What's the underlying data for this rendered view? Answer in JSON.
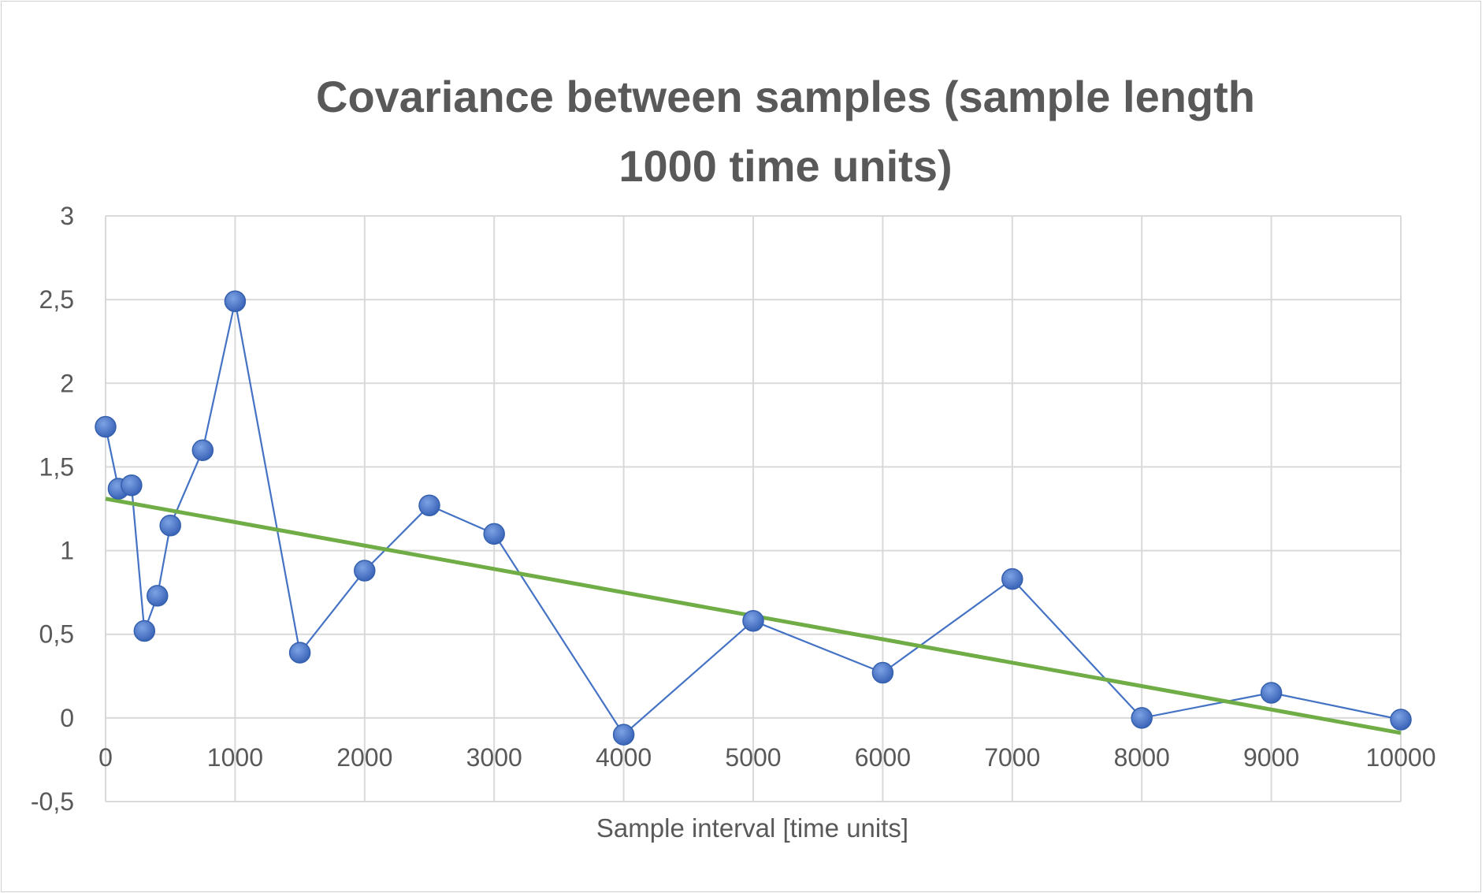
{
  "chart_data": {
    "type": "scatter",
    "title_lines": [
      "Covariance between samples (sample length",
      "1000 time units)"
    ],
    "xlabel": "Sample interval [time units]",
    "ylabel": "",
    "xlim": [
      0,
      10000
    ],
    "ylim": [
      -0.5,
      3
    ],
    "x_ticks": [
      0,
      1000,
      2000,
      3000,
      4000,
      5000,
      6000,
      7000,
      8000,
      9000,
      10000
    ],
    "x_tick_labels": [
      "0",
      "1000",
      "2000",
      "3000",
      "4000",
      "5000",
      "6000",
      "7000",
      "8000",
      "9000",
      "10000"
    ],
    "y_ticks": [
      3,
      2.5,
      2,
      1.5,
      1,
      0.5,
      0,
      -0.5
    ],
    "y_tick_labels": [
      "3",
      "2,5",
      "2",
      "1,5",
      "1",
      "0,5",
      "0",
      "-0,5"
    ],
    "grid": true,
    "legend": "none",
    "series": [
      {
        "style": "line-with-markers",
        "color": "#4472C4",
        "marker_color": "#4472C4",
        "x": [
          0,
          100,
          200,
          300,
          400,
          500,
          750,
          1000,
          1500,
          2000,
          2500,
          3000,
          4000,
          5000,
          6000,
          7000,
          8000,
          9000,
          10000
        ],
        "y": [
          1.74,
          1.37,
          1.39,
          0.52,
          0.73,
          1.15,
          1.6,
          2.49,
          0.39,
          0.88,
          1.27,
          1.1,
          -0.1,
          0.58,
          0.27,
          0.83,
          0.0,
          0.15,
          -0.01
        ]
      }
    ],
    "trendline": {
      "type": "linear",
      "color": "#70AD47",
      "x": [
        0,
        10000
      ],
      "y": [
        1.31,
        -0.09
      ]
    }
  }
}
